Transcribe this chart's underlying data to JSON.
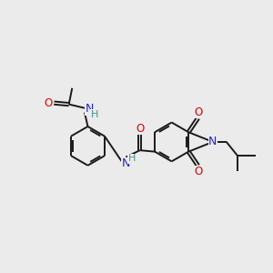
{
  "background_color": "#ebebeb",
  "bond_color": "#1a1a1a",
  "atom_colors": {
    "O": "#dd0000",
    "N": "#2222cc",
    "H": "#4a9090",
    "C": "#1a1a1a"
  },
  "figsize": [
    3.0,
    3.0
  ],
  "dpi": 100
}
